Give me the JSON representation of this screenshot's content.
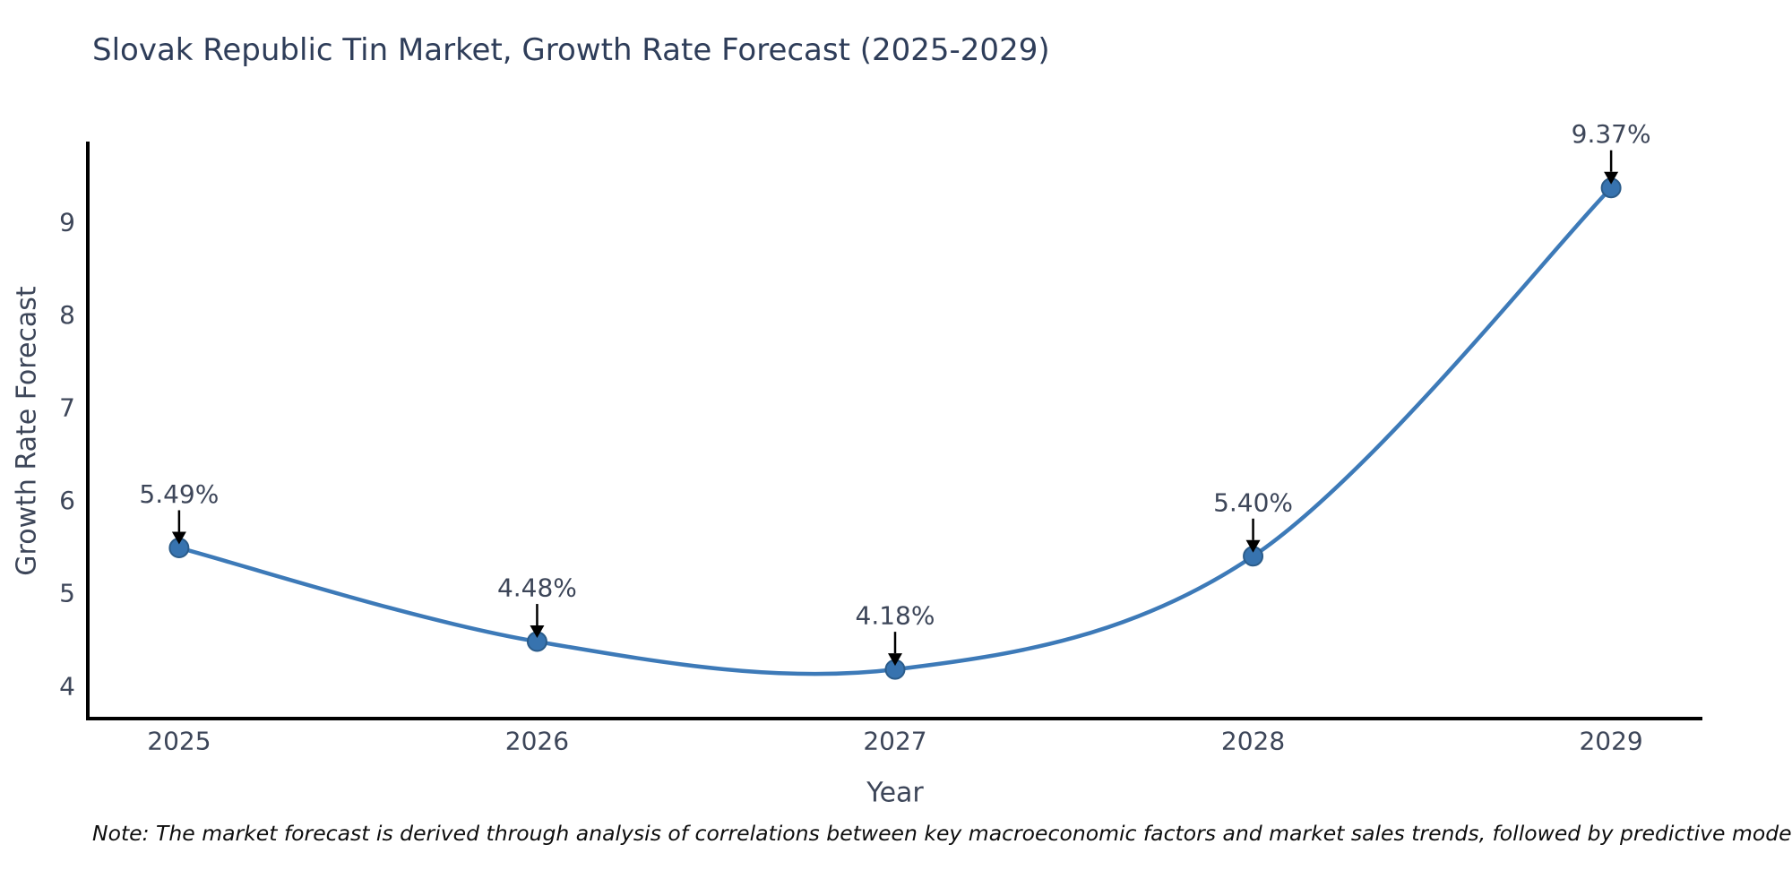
{
  "header": {
    "title": "Slovak Republic Tin Market, Growth Rate Forecast (2025-2029)"
  },
  "footnote": "Note: The market forecast is derived through analysis of correlations between key macroeconomic factors and market sales trends, followed by predictive modeling to project future sales.",
  "chart_data": {
    "type": "line",
    "title": "Slovak Republic Tin Market, Growth Rate Forecast (2025-2029)",
    "xlabel": "Year",
    "ylabel": "Growth Rate Forecast",
    "categories": [
      2025,
      2026,
      2027,
      2028,
      2029
    ],
    "values": [
      5.49,
      4.48,
      4.18,
      5.4,
      9.37
    ],
    "point_labels": [
      "5.49%",
      "4.48%",
      "4.18%",
      "5.40%",
      "9.37%"
    ],
    "yticks": [
      4,
      5,
      6,
      7,
      8,
      9
    ],
    "xlim": [
      2024.745,
      2029.255
    ],
    "ylim": [
      3.65,
      9.85
    ],
    "grid": false,
    "legend_position": "none",
    "line_smoothing": "spline",
    "colors": {
      "line": "#3d7ab8",
      "marker_fill": "#3773af",
      "marker_edge": "#2b5c8a",
      "arrow": "#000000",
      "axis": "#000000",
      "tick_label": "#3d4659",
      "title": "#2e3d59",
      "note": "#0d0d0d"
    }
  }
}
